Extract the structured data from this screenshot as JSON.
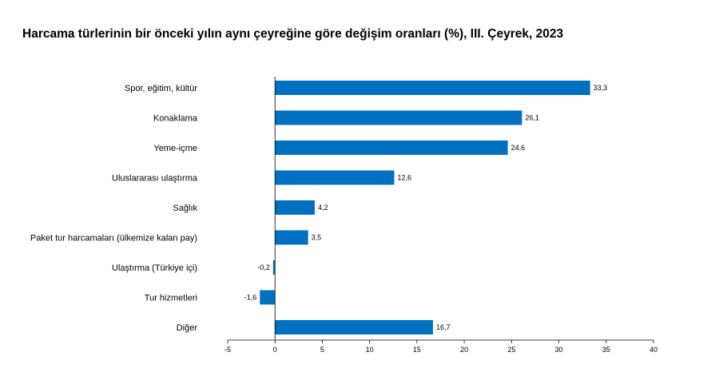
{
  "chart_data": {
    "type": "bar",
    "orientation": "horizontal",
    "title": "Harcama türlerinin bir önceki yılın aynı çeyreğine göre değişim oranları (%), III. Çeyrek, 2023",
    "categories": [
      "Spor, eğitim, kültür",
      "Konaklama",
      "Yeme-içme",
      "Uluslararası ulaştırma",
      "Sağlık",
      "Paket tur harcamaları (ülkemize kalan pay)",
      "Ulaştırma (Türkiye içi)",
      "Tur hizmetleri",
      "Diğer"
    ],
    "values": [
      33.3,
      26.1,
      24.6,
      12.6,
      4.2,
      3.5,
      -0.2,
      -1.6,
      16.7
    ],
    "value_labels": [
      "33,3",
      "26,1",
      "24,6",
      "12,6",
      "4,2",
      "3,5",
      "-0,2",
      "-1,6",
      "16,7"
    ],
    "xlim": [
      -5,
      40
    ],
    "xticks": [
      -5,
      0,
      5,
      10,
      15,
      20,
      25,
      30,
      35,
      40
    ],
    "xlabel": "",
    "ylabel": "",
    "bar_color": "#0070C0",
    "grid": false,
    "legend": "none"
  }
}
